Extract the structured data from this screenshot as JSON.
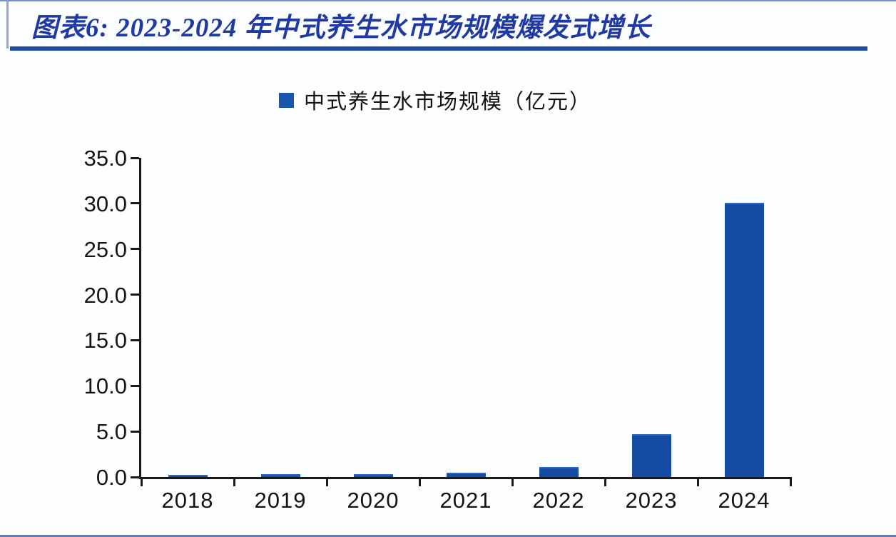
{
  "page": {
    "background": "#FCFDFF",
    "accent_color": "#1A4DAC"
  },
  "header": {
    "title": "图表6:  2023-2024 年中式养生水市场规模爆发式增长",
    "title_color": "#1F3BA3"
  },
  "legend": {
    "label": "中式养生水市场规模（亿元）",
    "swatch_color": "#1C55AC"
  },
  "chart_data": {
    "type": "bar",
    "title": "图表6: 2023-2024 年中式养生水市场规模爆发式增长",
    "legend_entries": [
      "中式养生水市场规模（亿元）"
    ],
    "legend_position": "top",
    "categories": [
      "2018",
      "2019",
      "2020",
      "2021",
      "2022",
      "2023",
      "2024"
    ],
    "values": [
      0.2,
      0.3,
      0.3,
      0.5,
      1.1,
      4.7,
      30.1
    ],
    "unit": "亿元",
    "xlabel": "",
    "ylabel": "",
    "ylim": [
      0,
      35
    ],
    "ytick_labels": [
      "0.0",
      "5.0",
      "10.0",
      "15.0",
      "20.0",
      "25.0",
      "30.0",
      "35.0"
    ],
    "grid": false,
    "bar_color": "#164BA3",
    "axis_color": "#1a1a1a"
  }
}
